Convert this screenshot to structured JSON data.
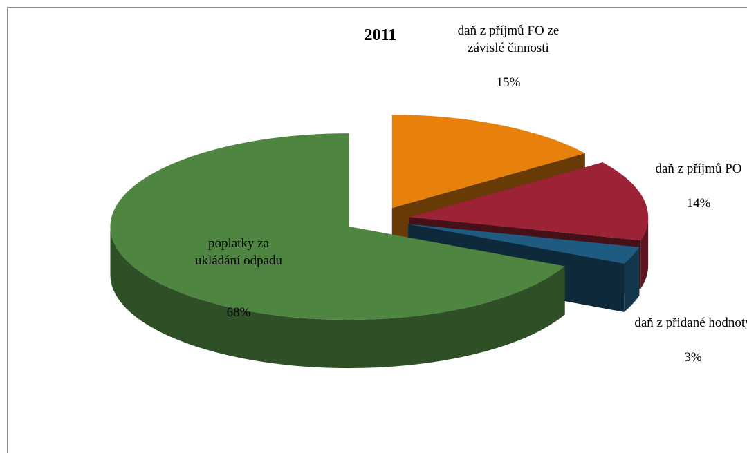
{
  "chart_data": {
    "type": "pie",
    "title": "2011",
    "categories": [
      "daň z příjmů FO ze závislé činnosti",
      "daň z příjmů PO",
      "daň z přidané hodnoty",
      "poplatky za ukládání odpadu"
    ],
    "values": [
      15,
      14,
      3,
      68
    ],
    "value_labels": [
      "15%",
      "14%",
      "3%",
      "68%"
    ],
    "colors": [
      "#e8800c",
      "#9b2335",
      "#1f5a80",
      "#4e8540"
    ]
  }
}
